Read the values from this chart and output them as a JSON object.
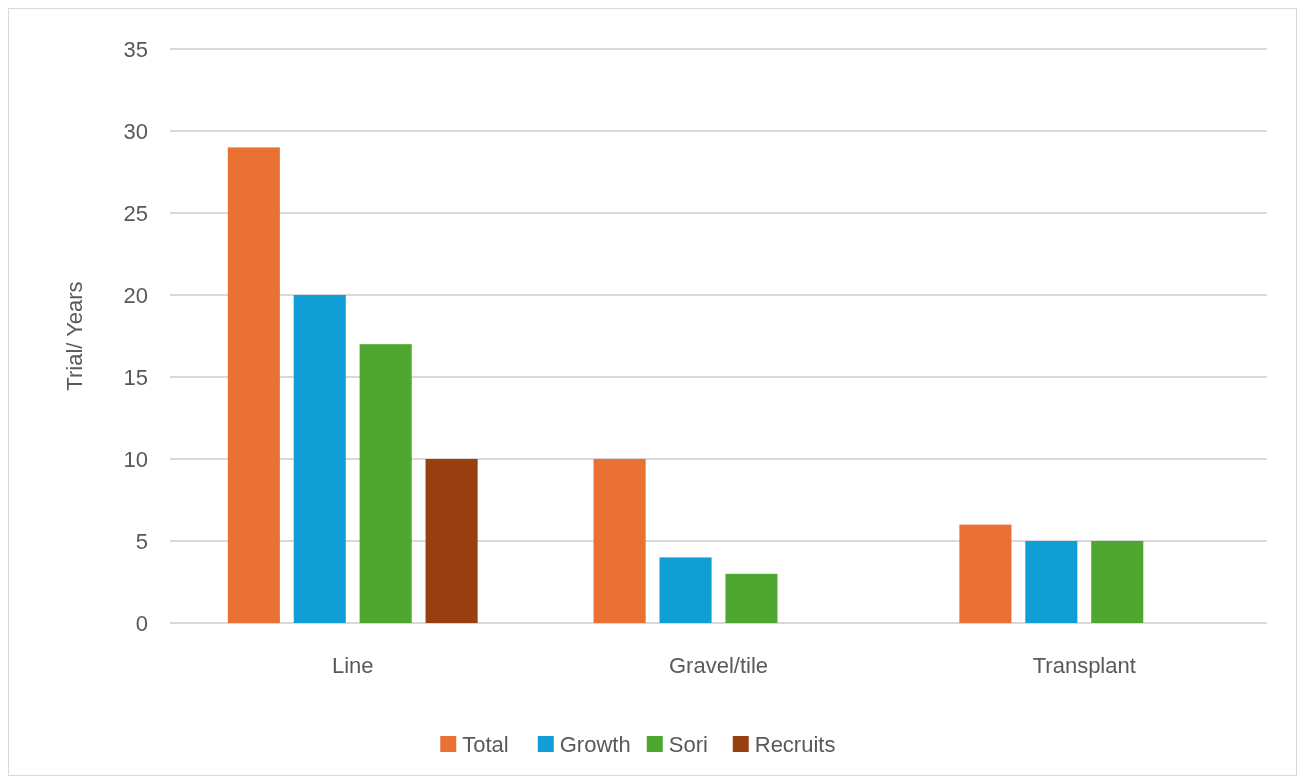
{
  "chart_data": {
    "type": "bar",
    "ylabel": "Trial/ Years",
    "categories": [
      "Line",
      "Gravel/tile",
      "Transplant"
    ],
    "series": [
      {
        "name": "Total",
        "color": "#e97132",
        "values": [
          29,
          10,
          6
        ]
      },
      {
        "name": "Growth",
        "color": "#0f9ed5",
        "values": [
          20,
          4,
          5
        ]
      },
      {
        "name": "Sori",
        "color": "#4ea72e",
        "values": [
          17,
          3,
          5
        ]
      },
      {
        "name": "Recruits",
        "color": "#973f0f",
        "values": [
          10,
          null,
          null
        ]
      }
    ],
    "ylim": [
      0,
      35
    ],
    "yticks": [
      0,
      5,
      10,
      15,
      20,
      25,
      30,
      35
    ],
    "grid": "y",
    "legend": "bottom"
  }
}
